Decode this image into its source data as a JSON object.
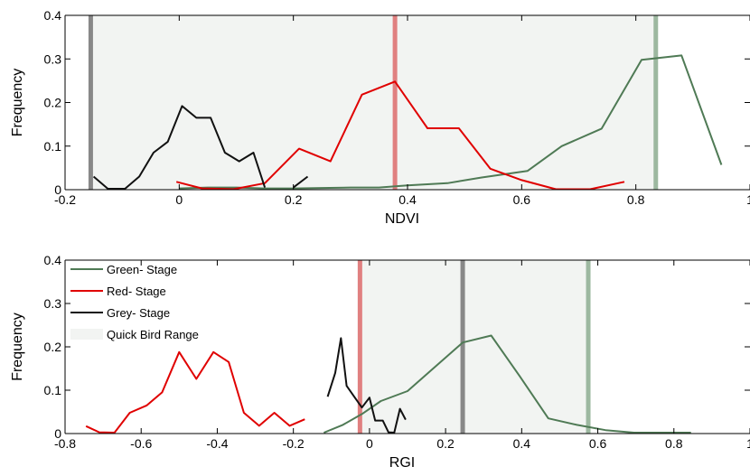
{
  "colors": {
    "green": "#4f7a55",
    "red": "#e00000",
    "grey": "#111111",
    "range_fill": "#f2f4f2",
    "green_marker": "#9db8a0",
    "red_marker": "#e08080",
    "grey_marker": "#888888"
  },
  "chart_data": [
    {
      "type": "line",
      "xlabel": "NDVI",
      "ylabel": "Frequency",
      "xlim": [
        -0.2,
        1.0
      ],
      "ylim": [
        0,
        0.4
      ],
      "xticks": [
        -0.2,
        0,
        0.2,
        0.4,
        0.6,
        0.8,
        1
      ],
      "xtick_labels": [
        "-0.2",
        "0",
        "0.2",
        "0.4",
        "0.6",
        "0.8",
        "1"
      ],
      "yticks": [
        0,
        0.1,
        0.2,
        0.3,
        0.4
      ],
      "ytick_labels": [
        "0",
        "0.1",
        "0.2",
        "0.3",
        "0.4"
      ],
      "range": [
        -0.155,
        0.835
      ],
      "markers": [
        {
          "name": "Grey- Stage",
          "x": -0.155,
          "color": "#888888"
        },
        {
          "name": "Red- Stage",
          "x": 0.378,
          "color": "#e08080"
        },
        {
          "name": "Green- Stage",
          "x": 0.835,
          "color": "#9db8a0"
        }
      ],
      "series": [
        {
          "name": "Green- Stage",
          "color": "#4f7a55",
          "x": [
            0,
            0.05,
            0.1,
            0.15,
            0.2,
            0.25,
            0.3,
            0.35,
            0.4,
            0.47,
            0.53,
            0.61,
            0.67,
            0.74,
            0.81,
            0.88,
            0.95
          ],
          "y": [
            0.003,
            0.005,
            0.005,
            0.003,
            0.003,
            0.004,
            0.005,
            0.005,
            0.01,
            0.015,
            0.028,
            0.043,
            0.1,
            0.14,
            0.298,
            0.308,
            0.057
          ]
        },
        {
          "name": "Red- Stage",
          "color": "#e00000",
          "x": [
            -0.005,
            0.04,
            0.095,
            0.15,
            0.21,
            0.265,
            0.32,
            0.378,
            0.435,
            0.49,
            0.545,
            0.6,
            0.66,
            0.72,
            0.78
          ],
          "y": [
            0.018,
            0.003,
            0.001,
            0.015,
            0.094,
            0.065,
            0.218,
            0.248,
            0.141,
            0.141,
            0.048,
            0.022,
            0.001,
            0.001,
            0.018
          ]
        },
        {
          "name": "Grey- Stage",
          "color": "#111111",
          "x": [
            -0.15,
            -0.125,
            -0.095,
            -0.07,
            -0.045,
            -0.02,
            0.005,
            0.03,
            0.055,
            0.08,
            0.105,
            0.13,
            0.15
          ],
          "y": [
            0.03,
            0.002,
            0.002,
            0.03,
            0.085,
            0.11,
            0.192,
            0.165,
            0.165,
            0.085,
            0.065,
            0.085,
            0.005
          ]
        },
        {
          "name": "Grey- Stage",
          "color": "#111111",
          "x": [
            0.2,
            0.225
          ],
          "y": [
            0.005,
            0.03
          ]
        }
      ]
    },
    {
      "type": "line",
      "xlabel": "RGI",
      "ylabel": "Frequency",
      "xlim": [
        -0.8,
        1.0
      ],
      "ylim": [
        0,
        0.4
      ],
      "xticks": [
        -0.8,
        -0.6,
        -0.4,
        -0.2,
        0,
        0.2,
        0.4,
        0.6,
        0.8,
        1
      ],
      "xtick_labels": [
        "-0.8",
        "-0.6",
        "-0.4",
        "-0.2",
        "0",
        "0.2",
        "0.4",
        "0.6",
        "0.8",
        "1"
      ],
      "yticks": [
        0,
        0.1,
        0.2,
        0.3,
        0.4
      ],
      "ytick_labels": [
        "0",
        "0.1",
        "0.2",
        "0.3",
        "0.4"
      ],
      "range": [
        -0.025,
        0.575
      ],
      "markers": [
        {
          "name": "Red- Stage",
          "x": -0.025,
          "color": "#e08080"
        },
        {
          "name": "Grey- Stage",
          "x": 0.245,
          "color": "#888888"
        },
        {
          "name": "Green- Stage",
          "x": 0.575,
          "color": "#9db8a0"
        }
      ],
      "series": [
        {
          "name": "Green- Stage",
          "color": "#4f7a55",
          "x": [
            -0.12,
            -0.07,
            -0.02,
            0.03,
            0.1,
            0.17,
            0.245,
            0.32,
            0.395,
            0.47,
            0.545,
            0.62,
            0.695,
            0.77,
            0.845
          ],
          "y": [
            0.002,
            0.02,
            0.045,
            0.075,
            0.098,
            0.152,
            0.21,
            0.226,
            0.132,
            0.035,
            0.02,
            0.008,
            0.002,
            0.002,
            0.002
          ]
        },
        {
          "name": "Red- Stage",
          "color": "#e00000",
          "x": [
            -0.745,
            -0.71,
            -0.67,
            -0.63,
            -0.585,
            -0.545,
            -0.5,
            -0.455,
            -0.41,
            -0.37,
            -0.33,
            -0.29,
            -0.25,
            -0.21,
            -0.17
          ],
          "y": [
            0.017,
            0.003,
            0.002,
            0.048,
            0.065,
            0.095,
            0.188,
            0.126,
            0.188,
            0.165,
            0.048,
            0.018,
            0.048,
            0.018,
            0.033
          ]
        },
        {
          "name": "Grey- Stage",
          "color": "#111111",
          "x": [
            -0.11,
            -0.09,
            -0.075,
            -0.06,
            -0.04,
            -0.02,
            0.0,
            0.015,
            0.035,
            0.05,
            0.065,
            0.08,
            0.095
          ],
          "y": [
            0.085,
            0.14,
            0.22,
            0.11,
            0.085,
            0.06,
            0.083,
            0.03,
            0.03,
            0.003,
            0.002,
            0.057,
            0.032
          ]
        }
      ],
      "legend": {
        "placement": "top-left",
        "items": [
          {
            "label": "Green- Stage",
            "color": "#4f7a55",
            "kind": "line"
          },
          {
            "label": "Red- Stage",
            "color": "#e00000",
            "kind": "line"
          },
          {
            "label": "Grey- Stage",
            "color": "#111111",
            "kind": "line"
          },
          {
            "label": "Quick Bird Range",
            "color": "#f2f4f2",
            "kind": "patch"
          }
        ]
      }
    }
  ]
}
